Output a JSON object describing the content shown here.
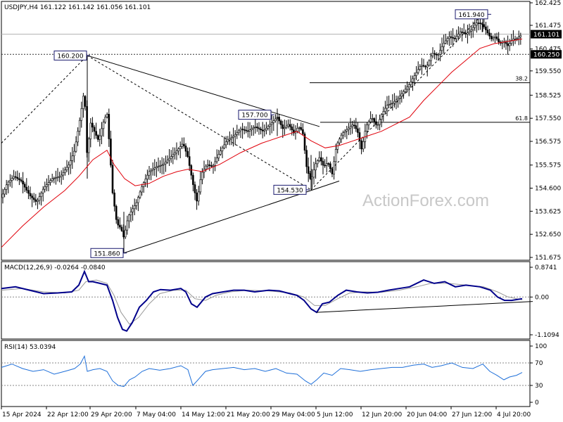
{
  "header": {
    "price": "USDJPY,H4  161.122 161.142 161.056 161.101",
    "macd": "MACD(12,26,9) -0.0264 -0.0840",
    "rsi": "RSI(14) 53.0394"
  },
  "watermark": "ActionForex.com",
  "colors": {
    "candle": "#000000",
    "ma": "#e0000a",
    "macd_line": "#00008b",
    "macd_signal": "#999999",
    "rsi_line": "#1e6fd9",
    "annotation_box": "#1a1a6e",
    "trendline": "#000000"
  },
  "chart_data": [
    {
      "type": "candlestick",
      "symbol": "USDJPY",
      "timeframe": "H4",
      "ylim": [
        151.675,
        162.425
      ],
      "yticks": [
        "162.425",
        "161.475",
        "160.475",
        "159.550",
        "158.525",
        "157.550",
        "156.575",
        "155.575",
        "154.600",
        "153.625",
        "152.650",
        "151.675"
      ],
      "current_price": "161.101",
      "current_price_value": 161.101,
      "level_line": "160.250",
      "level_line_value": 160.25,
      "fib_levels": [
        {
          "label": "38.2",
          "value": 159.05
        },
        {
          "label": "61.8",
          "value": 157.38
        }
      ],
      "annotations": [
        {
          "label": "160.200",
          "value": 160.2
        },
        {
          "label": "151.860",
          "value": 151.86
        },
        {
          "label": "157.700",
          "value": 157.7
        },
        {
          "label": "154.530",
          "value": 154.53
        },
        {
          "label": "161.940",
          "value": 161.94
        }
      ],
      "close_path": [
        [
          0,
          154.2
        ],
        [
          8,
          154.8
        ],
        [
          18,
          155.1
        ],
        [
          28,
          154.9
        ],
        [
          40,
          154.3
        ],
        [
          50,
          154.0
        ],
        [
          60,
          154.6
        ],
        [
          72,
          155.0
        ],
        [
          84,
          155.1
        ],
        [
          96,
          155.6
        ],
        [
          104,
          156.2
        ],
        [
          112,
          157.6
        ],
        [
          118,
          158.8
        ],
        [
          122,
          155.8
        ],
        [
          126,
          157.4
        ],
        [
          132,
          157.0
        ],
        [
          138,
          156.6
        ],
        [
          144,
          157.3
        ],
        [
          150,
          157.8
        ],
        [
          154,
          156.2
        ],
        [
          158,
          154.4
        ],
        [
          164,
          153.1
        ],
        [
          170,
          152.9
        ],
        [
          174,
          152.5
        ],
        [
          180,
          153.4
        ],
        [
          186,
          153.7
        ],
        [
          192,
          154.0
        ],
        [
          200,
          154.7
        ],
        [
          210,
          155.3
        ],
        [
          220,
          155.5
        ],
        [
          230,
          155.6
        ],
        [
          240,
          155.9
        ],
        [
          250,
          156.2
        ],
        [
          258,
          156.5
        ],
        [
          265,
          155.9
        ],
        [
          272,
          154.8
        ],
        [
          278,
          154.0
        ],
        [
          284,
          155.2
        ],
        [
          292,
          155.6
        ],
        [
          300,
          155.5
        ],
        [
          310,
          156.1
        ],
        [
          320,
          156.6
        ],
        [
          330,
          156.8
        ],
        [
          340,
          157.1
        ],
        [
          350,
          157.0
        ],
        [
          360,
          157.2
        ],
        [
          372,
          157.0
        ],
        [
          382,
          157.3
        ],
        [
          392,
          157.6
        ],
        [
          400,
          157.1
        ],
        [
          408,
          157.3
        ],
        [
          416,
          156.9
        ],
        [
          422,
          157.2
        ],
        [
          428,
          157.0
        ],
        [
          434,
          155.4
        ],
        [
          440,
          154.9
        ],
        [
          446,
          155.6
        ],
        [
          452,
          155.9
        ],
        [
          458,
          155.5
        ],
        [
          464,
          155.7
        ],
        [
          470,
          155.2
        ],
        [
          476,
          156.4
        ],
        [
          484,
          156.9
        ],
        [
          492,
          157.1
        ],
        [
          500,
          157.3
        ],
        [
          506,
          157.0
        ],
        [
          512,
          156.2
        ],
        [
          518,
          157.2
        ],
        [
          526,
          157.6
        ],
        [
          534,
          157.2
        ],
        [
          540,
          157.7
        ],
        [
          548,
          158.1
        ],
        [
          556,
          158.2
        ],
        [
          564,
          158.4
        ],
        [
          572,
          158.7
        ],
        [
          580,
          159.0
        ],
        [
          588,
          159.4
        ],
        [
          596,
          159.8
        ],
        [
          604,
          159.7
        ],
        [
          612,
          160.3
        ],
        [
          620,
          160.2
        ],
        [
          628,
          160.7
        ],
        [
          636,
          161.0
        ],
        [
          644,
          160.9
        ],
        [
          652,
          161.2
        ],
        [
          660,
          161.1
        ],
        [
          668,
          161.3
        ],
        [
          676,
          161.6
        ],
        [
          684,
          161.5
        ],
        [
          690,
          161.2
        ],
        [
          696,
          160.9
        ],
        [
          702,
          161.0
        ],
        [
          708,
          160.7
        ],
        [
          714,
          160.8
        ],
        [
          720,
          160.6
        ],
        [
          726,
          160.9
        ],
        [
          732,
          160.9
        ],
        [
          740,
          161.1
        ]
      ],
      "ma_path": [
        [
          0,
          152.1
        ],
        [
          30,
          153.0
        ],
        [
          60,
          153.8
        ],
        [
          90,
          154.5
        ],
        [
          110,
          155.1
        ],
        [
          130,
          155.8
        ],
        [
          150,
          156.2
        ],
        [
          160,
          155.6
        ],
        [
          175,
          155.0
        ],
        [
          190,
          154.7
        ],
        [
          210,
          154.8
        ],
        [
          230,
          155.1
        ],
        [
          250,
          155.3
        ],
        [
          265,
          155.4
        ],
        [
          285,
          155.3
        ],
        [
          310,
          155.6
        ],
        [
          340,
          156.1
        ],
        [
          370,
          156.5
        ],
        [
          400,
          156.8
        ],
        [
          420,
          157.0
        ],
        [
          440,
          156.6
        ],
        [
          460,
          156.3
        ],
        [
          480,
          156.4
        ],
        [
          500,
          156.6
        ],
        [
          520,
          156.8
        ],
        [
          540,
          157.0
        ],
        [
          560,
          157.3
        ],
        [
          580,
          157.6
        ],
        [
          600,
          158.3
        ],
        [
          620,
          158.9
        ],
        [
          640,
          159.5
        ],
        [
          660,
          160.0
        ],
        [
          680,
          160.5
        ],
        [
          700,
          160.7
        ],
        [
          720,
          160.8
        ],
        [
          740,
          160.9
        ]
      ],
      "trendlines": [
        {
          "from": [
            122,
            160.2
          ],
          "to": [
            452,
            157.2
          ]
        },
        {
          "from": [
            174,
            151.86
          ],
          "to": [
            480,
            154.9
          ]
        },
        {
          "from": [
            0,
            156.5
          ],
          "to": [
            122,
            160.2
          ]
        },
        {
          "from": [
            122,
            160.2
          ],
          "to": [
            440,
            154.53
          ]
        },
        {
          "from": [
            440,
            154.53
          ],
          "to": [
            684,
            161.94
          ]
        }
      ]
    },
    {
      "type": "line",
      "name": "MACD(12,26,9)",
      "ylim": [
        -1.1094,
        0.8741
      ],
      "yticks": [
        "0.8741",
        "0.00",
        "-1.1094"
      ],
      "main_line": [
        [
          0,
          0.25
        ],
        [
          20,
          0.3
        ],
        [
          40,
          0.2
        ],
        [
          60,
          0.1
        ],
        [
          80,
          0.12
        ],
        [
          100,
          0.15
        ],
        [
          110,
          0.35
        ],
        [
          118,
          0.75
        ],
        [
          124,
          0.45
        ],
        [
          130,
          0.45
        ],
        [
          140,
          0.4
        ],
        [
          150,
          0.35
        ],
        [
          158,
          -0.1
        ],
        [
          165,
          -0.6
        ],
        [
          172,
          -0.95
        ],
        [
          178,
          -1.0
        ],
        [
          186,
          -0.75
        ],
        [
          196,
          -0.3
        ],
        [
          206,
          -0.1
        ],
        [
          216,
          0.15
        ],
        [
          226,
          0.22
        ],
        [
          240,
          0.2
        ],
        [
          255,
          0.25
        ],
        [
          262,
          0.15
        ],
        [
          270,
          -0.2
        ],
        [
          278,
          -0.3
        ],
        [
          290,
          0.0
        ],
        [
          300,
          0.1
        ],
        [
          315,
          0.15
        ],
        [
          330,
          0.2
        ],
        [
          345,
          0.2
        ],
        [
          360,
          0.15
        ],
        [
          380,
          0.2
        ],
        [
          395,
          0.18
        ],
        [
          410,
          0.1
        ],
        [
          420,
          0.05
        ],
        [
          430,
          -0.1
        ],
        [
          440,
          -0.35
        ],
        [
          448,
          -0.45
        ],
        [
          456,
          -0.2
        ],
        [
          466,
          -0.15
        ],
        [
          478,
          0.05
        ],
        [
          490,
          0.2
        ],
        [
          505,
          0.15
        ],
        [
          520,
          0.12
        ],
        [
          535,
          0.14
        ],
        [
          550,
          0.2
        ],
        [
          565,
          0.25
        ],
        [
          580,
          0.3
        ],
        [
          600,
          0.5
        ],
        [
          615,
          0.4
        ],
        [
          630,
          0.45
        ],
        [
          645,
          0.3
        ],
        [
          660,
          0.35
        ],
        [
          680,
          0.3
        ],
        [
          695,
          0.2
        ],
        [
          705,
          0.0
        ],
        [
          715,
          -0.1
        ],
        [
          725,
          -0.1
        ],
        [
          740,
          -0.05
        ]
      ],
      "signal_line": [
        [
          0,
          0.2
        ],
        [
          30,
          0.25
        ],
        [
          60,
          0.15
        ],
        [
          90,
          0.12
        ],
        [
          110,
          0.2
        ],
        [
          120,
          0.45
        ],
        [
          135,
          0.5
        ],
        [
          150,
          0.4
        ],
        [
          160,
          0.05
        ],
        [
          170,
          -0.45
        ],
        [
          182,
          -0.8
        ],
        [
          195,
          -0.6
        ],
        [
          210,
          -0.2
        ],
        [
          225,
          0.1
        ],
        [
          245,
          0.2
        ],
        [
          262,
          0.2
        ],
        [
          275,
          -0.05
        ],
        [
          290,
          -0.1
        ],
        [
          305,
          0.05
        ],
        [
          325,
          0.15
        ],
        [
          350,
          0.2
        ],
        [
          380,
          0.18
        ],
        [
          410,
          0.12
        ],
        [
          430,
          0.0
        ],
        [
          445,
          -0.25
        ],
        [
          460,
          -0.25
        ],
        [
          478,
          -0.05
        ],
        [
          495,
          0.12
        ],
        [
          515,
          0.15
        ],
        [
          540,
          0.14
        ],
        [
          565,
          0.2
        ],
        [
          590,
          0.3
        ],
        [
          610,
          0.4
        ],
        [
          635,
          0.4
        ],
        [
          660,
          0.35
        ],
        [
          685,
          0.3
        ],
        [
          705,
          0.15
        ],
        [
          720,
          0.0
        ],
        [
          740,
          -0.08
        ]
      ],
      "trendline": {
        "from": [
          448,
          -0.45
        ],
        "to": [
          755,
          -0.13
        ]
      }
    },
    {
      "type": "line",
      "name": "RSI(14)",
      "ylim": [
        0,
        100
      ],
      "yticks": [
        "100",
        "70",
        "30",
        "0"
      ],
      "levels": [
        70,
        30
      ],
      "values": [
        [
          0,
          62
        ],
        [
          15,
          68
        ],
        [
          30,
          60
        ],
        [
          45,
          55
        ],
        [
          60,
          58
        ],
        [
          75,
          50
        ],
        [
          90,
          55
        ],
        [
          104,
          60
        ],
        [
          112,
          68
        ],
        [
          118,
          82
        ],
        [
          122,
          55
        ],
        [
          130,
          58
        ],
        [
          140,
          60
        ],
        [
          150,
          55
        ],
        [
          158,
          38
        ],
        [
          166,
          30
        ],
        [
          174,
          28
        ],
        [
          182,
          40
        ],
        [
          190,
          45
        ],
        [
          200,
          55
        ],
        [
          210,
          60
        ],
        [
          225,
          57
        ],
        [
          240,
          60
        ],
        [
          255,
          65
        ],
        [
          265,
          58
        ],
        [
          272,
          30
        ],
        [
          278,
          38
        ],
        [
          290,
          55
        ],
        [
          300,
          58
        ],
        [
          315,
          60
        ],
        [
          330,
          62
        ],
        [
          345,
          58
        ],
        [
          360,
          60
        ],
        [
          375,
          55
        ],
        [
          390,
          60
        ],
        [
          405,
          52
        ],
        [
          420,
          50
        ],
        [
          432,
          38
        ],
        [
          440,
          32
        ],
        [
          448,
          40
        ],
        [
          458,
          52
        ],
        [
          470,
          48
        ],
        [
          482,
          60
        ],
        [
          495,
          58
        ],
        [
          510,
          55
        ],
        [
          525,
          58
        ],
        [
          540,
          60
        ],
        [
          555,
          62
        ],
        [
          570,
          62
        ],
        [
          585,
          66
        ],
        [
          600,
          68
        ],
        [
          612,
          62
        ],
        [
          625,
          65
        ],
        [
          640,
          70
        ],
        [
          655,
          62
        ],
        [
          670,
          60
        ],
        [
          684,
          68
        ],
        [
          694,
          55
        ],
        [
          704,
          48
        ],
        [
          714,
          40
        ],
        [
          722,
          45
        ],
        [
          732,
          48
        ],
        [
          740,
          53
        ]
      ]
    }
  ],
  "x_axis": {
    "labels": [
      "15 Apr 2024",
      "22 Apr 12:00",
      "29 Apr 20:00",
      "7 May 04:00",
      "14 May 12:00",
      "21 May 20:00",
      "29 May 04:00",
      "5 Jun 12:00",
      "12 Jun 20:00",
      "20 Jun 04:00",
      "27 Jun 12:00",
      "4 Jul 20:00"
    ]
  }
}
